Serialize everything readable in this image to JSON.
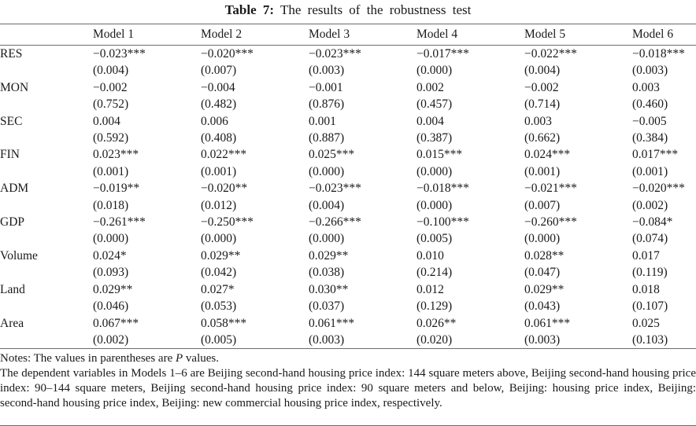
{
  "title": {
    "bold": "Table 7:",
    "rest": " The results of the robustness test"
  },
  "chart_data": {
    "type": "table",
    "title": "Table 7: The results of the robustness test",
    "columns": [
      "",
      "Model 1",
      "Model 2",
      "Model 3",
      "Model 4",
      "Model 5",
      "Model 6"
    ],
    "rows": [
      {
        "label": "RES",
        "coefs": [
          "−0.023***",
          "−0.020***",
          "−0.023***",
          "−0.017***",
          "−0.022***",
          "−0.018***"
        ],
        "pvals": [
          "(0.004)",
          "(0.007)",
          "(0.003)",
          "(0.000)",
          "(0.004)",
          "(0.003)"
        ]
      },
      {
        "label": "MON",
        "coefs": [
          "−0.002",
          "−0.004",
          "−0.001",
          "0.002",
          "−0.002",
          "0.003"
        ],
        "pvals": [
          "(0.752)",
          "(0.482)",
          "(0.876)",
          "(0.457)",
          "(0.714)",
          "(0.460)"
        ]
      },
      {
        "label": "SEC",
        "coefs": [
          "0.004",
          "0.006",
          "0.001",
          "0.004",
          "0.003",
          "−0.005"
        ],
        "pvals": [
          "(0.592)",
          "(0.408)",
          "(0.887)",
          "(0.387)",
          "(0.662)",
          "(0.384)"
        ]
      },
      {
        "label": "FIN",
        "coefs": [
          "0.023***",
          "0.022***",
          "0.025***",
          "0.015***",
          "0.024***",
          "0.017***"
        ],
        "pvals": [
          "(0.001)",
          "(0.001)",
          "(0.000)",
          "(0.000)",
          "(0.001)",
          "(0.001)"
        ]
      },
      {
        "label": "ADM",
        "coefs": [
          "−0.019**",
          "−0.020**",
          "−0.023***",
          "−0.018***",
          "−0.021***",
          "−0.020***"
        ],
        "pvals": [
          "(0.018)",
          "(0.012)",
          "(0.004)",
          "(0.000)",
          "(0.007)",
          "(0.002)"
        ]
      },
      {
        "label": "GDP",
        "coefs": [
          "−0.261***",
          "−0.250***",
          "−0.266***",
          "−0.100***",
          "−0.260***",
          "−0.084*"
        ],
        "pvals": [
          "(0.000)",
          "(0.000)",
          "(0.000)",
          "(0.005)",
          "(0.000)",
          "(0.074)"
        ]
      },
      {
        "label": "Volume",
        "coefs": [
          "0.024*",
          "0.029**",
          "0.029**",
          "0.010",
          "0.028**",
          "0.017"
        ],
        "pvals": [
          "(0.093)",
          "(0.042)",
          "(0.038)",
          "(0.214)",
          "(0.047)",
          "(0.119)"
        ]
      },
      {
        "label": "Land",
        "coefs": [
          "0.029**",
          "0.027*",
          "0.030**",
          "0.012",
          "0.029**",
          "0.018"
        ],
        "pvals": [
          "(0.046)",
          "(0.053)",
          "(0.037)",
          "(0.129)",
          "(0.043)",
          "(0.107)"
        ]
      },
      {
        "label": "Area",
        "coefs": [
          "0.067***",
          "0.058***",
          "0.061***",
          "0.026**",
          "0.061***",
          "0.025"
        ],
        "pvals": [
          "(0.002)",
          "(0.005)",
          "(0.003)",
          "(0.020)",
          "(0.003)",
          "(0.103)"
        ]
      }
    ]
  },
  "notes": {
    "line1_prefix": "Notes: The values in parentheses are ",
    "line1_italic": "P",
    "line1_suffix": " values.",
    "paragraph": "The dependent variables in Models 1–6 are Beijing second-hand housing price index: 144 square meters above, Beijing second-hand housing price index: 90–144 square meters, Beijing second-hand housing price index: 90 square meters and below, Beijing: housing price index, Beijing: second-hand housing price index, Beijing: new commercial housing price index, respectively."
  }
}
